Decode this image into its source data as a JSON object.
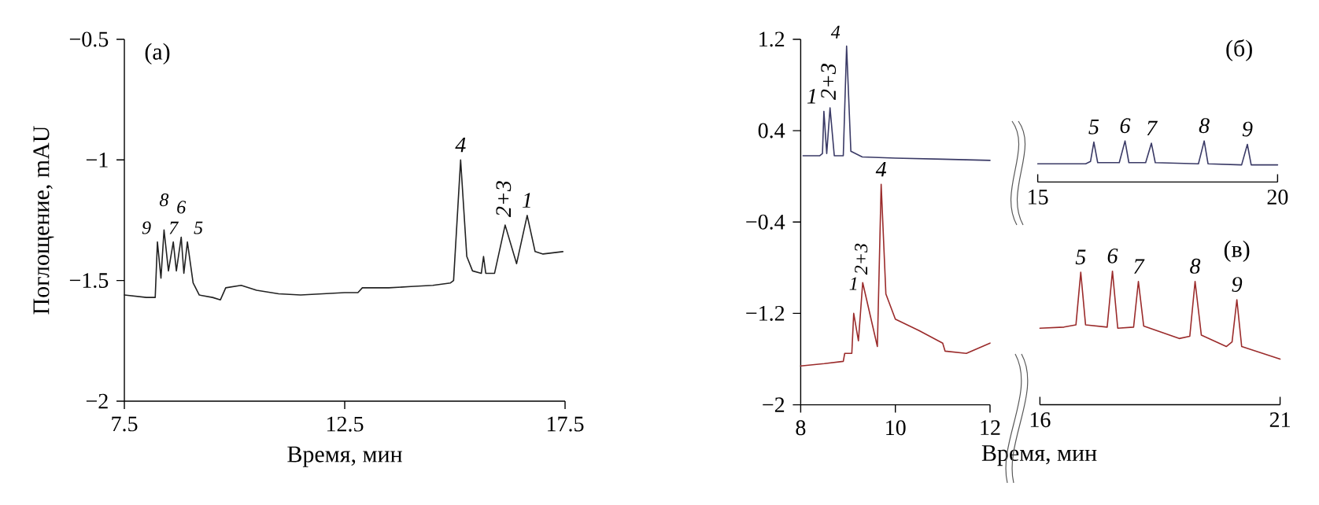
{
  "chart_data": [
    {
      "type": "line",
      "color": "#222222",
      "xlabel": "Время, мин",
      "ylabel": "Поглощение, mAU",
      "xlim": [
        7.5,
        17.5
      ],
      "ylim": [
        -2,
        -0.5
      ],
      "xticks": [
        7.5,
        12.5,
        17.5
      ],
      "yticks": [
        {
          "value": -2,
          "label": "−2"
        },
        {
          "value": -1.5,
          "label": "−1.5"
        },
        {
          "value": -1,
          "label": "−1"
        },
        {
          "value": -0.5,
          "label": "−0.5"
        }
      ],
      "x": [
        7.5,
        8.0,
        8.2,
        8.25,
        8.33,
        8.4,
        8.5,
        8.61,
        8.68,
        8.79,
        8.85,
        8.93,
        9.06,
        9.2,
        9.5,
        9.68,
        9.8,
        10.15,
        10.5,
        11.0,
        11.5,
        12.0,
        12.5,
        12.8,
        12.9,
        13.5,
        14.0,
        14.5,
        14.9,
        14.97,
        15.13,
        15.27,
        15.4,
        15.6,
        15.65,
        15.7,
        15.9,
        16.14,
        16.4,
        16.64,
        16.82,
        17.0,
        17.45
      ],
      "values": [
        -1.56,
        -1.57,
        -1.57,
        -1.34,
        -1.49,
        -1.29,
        -1.46,
        -1.34,
        -1.46,
        -1.32,
        -1.47,
        -1.34,
        -1.51,
        -1.56,
        -1.57,
        -1.58,
        -1.53,
        -1.52,
        -1.54,
        -1.555,
        -1.56,
        -1.555,
        -1.55,
        -1.55,
        -1.53,
        -1.53,
        -1.525,
        -1.52,
        -1.51,
        -1.5,
        -1.0,
        -1.4,
        -1.46,
        -1.47,
        -1.4,
        -1.47,
        -1.47,
        -1.27,
        -1.43,
        -1.23,
        -1.38,
        -1.39,
        -1.38
      ],
      "annotations": [
        "(а)",
        {
          "text": "9",
          "x": 8.25,
          "y": -1.34
        },
        {
          "text": "8",
          "x": 8.4,
          "y": -1.29
        },
        {
          "text": "7",
          "x": 8.61,
          "y": -1.34
        },
        {
          "text": "6",
          "x": 8.79,
          "y": -1.32
        },
        {
          "text": "5",
          "x": 8.93,
          "y": -1.34
        },
        {
          "text": "4",
          "x": 15.13,
          "y": -1.0
        },
        {
          "text": "2+3",
          "x": 16.14,
          "y": -1.27
        },
        {
          "text": "1",
          "x": 16.64,
          "y": -1.23
        }
      ]
    },
    {
      "type": "line",
      "xlabel": "Время, мин",
      "xlim": [
        8,
        12
      ],
      "ylim": [
        -2,
        1.2
      ],
      "xticks": [
        8,
        10,
        12
      ],
      "yticks": [
        {
          "value": -2,
          "label": "−2"
        },
        {
          "value": -1.2,
          "label": "−1.2"
        },
        {
          "value": -0.4,
          "label": "−0.4"
        },
        0.4,
        1.2
      ],
      "series": [
        {
          "color": "#3a3a66",
          "x": [
            8.05,
            8.4,
            8.46,
            8.49,
            8.55,
            8.62,
            8.71,
            8.9,
            8.97,
            9.06,
            9.3,
            10.0,
            11.0,
            12.0
          ],
          "values": [
            0.18,
            0.18,
            0.2,
            0.57,
            0.2,
            0.6,
            0.18,
            0.18,
            1.14,
            0.22,
            0.17,
            0.16,
            0.15,
            0.14
          ]
        },
        {
          "color": "#9b2b2b",
          "x": [
            8.0,
            8.5,
            8.9,
            8.93,
            9.08,
            9.12,
            9.22,
            9.31,
            9.62,
            9.7,
            9.8,
            10.0,
            10.5,
            11.0,
            11.05,
            11.5,
            12.0
          ],
          "values": [
            -1.66,
            -1.64,
            -1.62,
            -1.55,
            -1.55,
            -1.2,
            -1.44,
            -0.93,
            -1.49,
            -0.07,
            -1.03,
            -1.25,
            -1.35,
            -1.46,
            -1.53,
            -1.55,
            -1.46
          ]
        }
      ],
      "annotations": [
        {
          "text": "1",
          "x": 8.49,
          "y": 0.57
        },
        {
          "text": "2+3",
          "x": 8.62,
          "y": 0.6
        },
        {
          "text": "4",
          "x": 8.97,
          "y": 1.14
        },
        {
          "text": "1",
          "x": 9.12,
          "y": -1.2
        },
        {
          "text": "2+3",
          "x": 9.31,
          "y": -0.93
        },
        {
          "text": "4",
          "x": 9.7,
          "y": -0.07
        }
      ]
    },
    {
      "type": "line",
      "color": "#3a3a66",
      "xlim": [
        15,
        20
      ],
      "ylim": [
        -2,
        1.2
      ],
      "xticks": [
        15,
        20
      ],
      "tick_labels": "x",
      "x": [
        15.0,
        16.0,
        16.1,
        16.17,
        16.25,
        16.7,
        16.82,
        16.9,
        17.25,
        17.37,
        17.45,
        18.35,
        18.47,
        18.55,
        19.25,
        19.37,
        19.45,
        20.0
      ],
      "values": [
        0.11,
        0.11,
        0.13,
        0.3,
        0.12,
        0.12,
        0.31,
        0.12,
        0.12,
        0.29,
        0.12,
        0.11,
        0.31,
        0.11,
        0.1,
        0.28,
        0.1,
        0.1
      ],
      "annotations": [
        "(б)",
        {
          "text": "5",
          "x": 16.17,
          "y": 0.3
        },
        {
          "text": "6",
          "x": 16.82,
          "y": 0.31
        },
        {
          "text": "7",
          "x": 17.37,
          "y": 0.29
        },
        {
          "text": "8",
          "x": 18.47,
          "y": 0.31
        },
        {
          "text": "9",
          "x": 19.37,
          "y": 0.28
        }
      ]
    },
    {
      "type": "line",
      "color": "#9b2b2b",
      "xlim": [
        16,
        21
      ],
      "ylim": [
        -2,
        1.2
      ],
      "xticks": [
        16,
        21
      ],
      "tick_labels": "x",
      "x": [
        16.0,
        16.5,
        16.75,
        16.85,
        16.95,
        17.4,
        17.51,
        17.62,
        17.95,
        18.05,
        18.16,
        18.9,
        19.12,
        19.23,
        19.36,
        19.88,
        20.0,
        20.1,
        20.2,
        21.0
      ],
      "values": [
        -1.33,
        -1.32,
        -1.3,
        -0.84,
        -1.3,
        -1.32,
        -0.83,
        -1.33,
        -1.32,
        -0.92,
        -1.31,
        -1.42,
        -1.4,
        -0.92,
        -1.39,
        -1.49,
        -1.45,
        -1.08,
        -1.49,
        -1.6
      ],
      "annotations": [
        "(в)",
        {
          "text": "5",
          "x": 16.85,
          "y": -0.84
        },
        {
          "text": "6",
          "x": 17.51,
          "y": -0.83
        },
        {
          "text": "7",
          "x": 18.05,
          "y": -0.92
        },
        {
          "text": "8",
          "x": 19.23,
          "y": -0.92
        },
        {
          "text": "9",
          "x": 20.1,
          "y": -1.08
        }
      ]
    }
  ]
}
